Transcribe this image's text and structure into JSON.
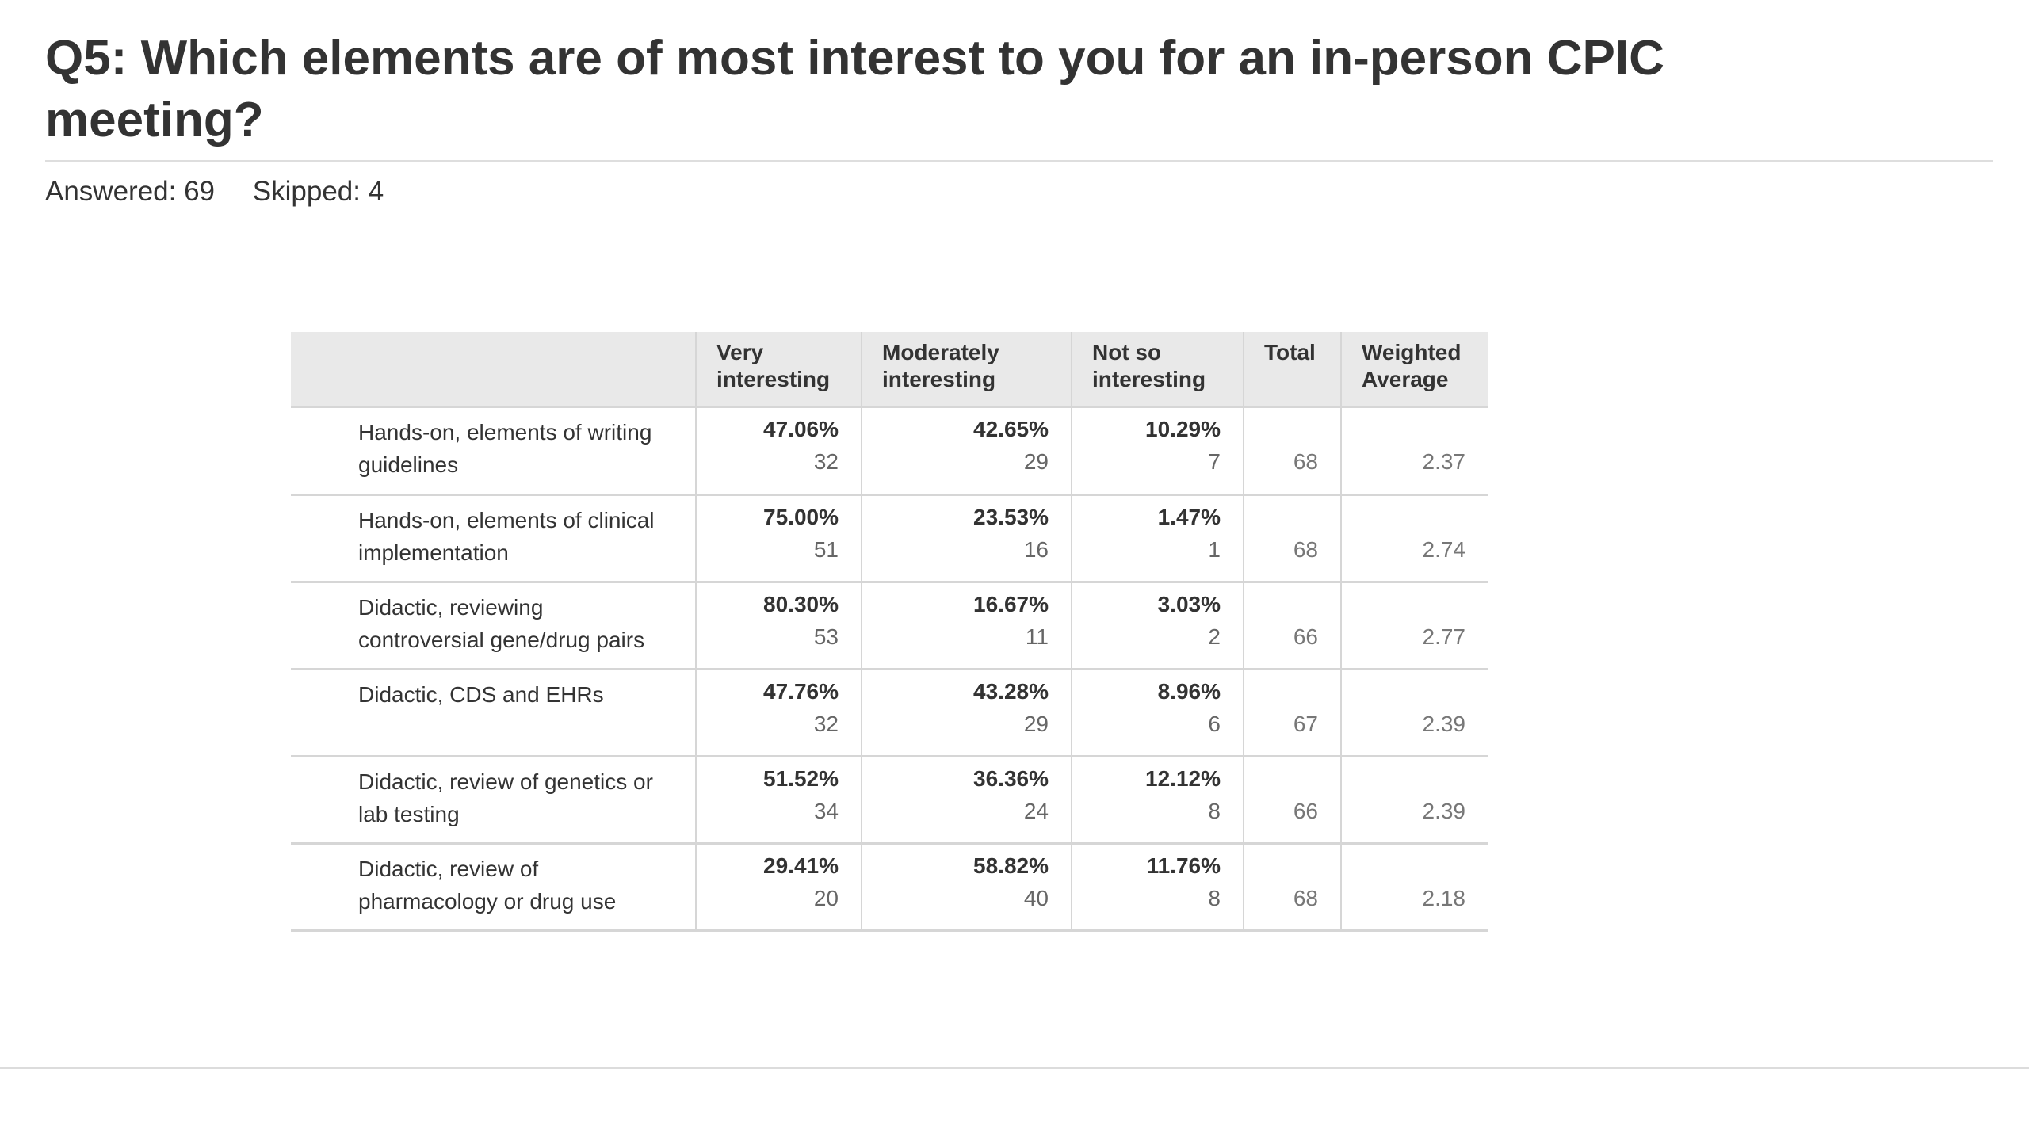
{
  "question": {
    "title": "Q5: Which elements are of most interest to you for an in-person CPIC meeting?",
    "answered": "Answered: 69",
    "skipped": "Skipped: 4"
  },
  "table": {
    "headers": {
      "label": "",
      "very": "Very interesting",
      "moderately": "Moderately interesting",
      "not_so": "Not so interesting",
      "total": "Total",
      "weighted_average": "Weighted Average"
    },
    "rows": [
      {
        "label": "Hands-on, elements of writing guidelines",
        "very_pct": "47.06%",
        "very_count": "32",
        "mod_pct": "42.65%",
        "mod_count": "29",
        "not_pct": "10.29%",
        "not_count": "7",
        "total": "68",
        "weighted_average": "2.37"
      },
      {
        "label": "Hands-on, elements of clinical implementation",
        "very_pct": "75.00%",
        "very_count": "51",
        "mod_pct": "23.53%",
        "mod_count": "16",
        "not_pct": "1.47%",
        "not_count": "1",
        "total": "68",
        "weighted_average": "2.74"
      },
      {
        "label": "Didactic, reviewing controversial gene/drug pairs",
        "very_pct": "80.30%",
        "very_count": "53",
        "mod_pct": "16.67%",
        "mod_count": "11",
        "not_pct": "3.03%",
        "not_count": "2",
        "total": "66",
        "weighted_average": "2.77"
      },
      {
        "label": "Didactic, CDS and EHRs",
        "very_pct": "47.76%",
        "very_count": "32",
        "mod_pct": "43.28%",
        "mod_count": "29",
        "not_pct": "8.96%",
        "not_count": "6",
        "total": "67",
        "weighted_average": "2.39"
      },
      {
        "label": "Didactic, review of genetics or lab testing",
        "very_pct": "51.52%",
        "very_count": "34",
        "mod_pct": "36.36%",
        "mod_count": "24",
        "not_pct": "12.12%",
        "not_count": "8",
        "total": "66",
        "weighted_average": "2.39"
      },
      {
        "label": "Didactic, review of pharmacology or drug use",
        "very_pct": "29.41%",
        "very_count": "20",
        "mod_pct": "58.82%",
        "mod_count": "40",
        "not_pct": "11.76%",
        "not_count": "8",
        "total": "68",
        "weighted_average": "2.18"
      }
    ]
  },
  "colors": {
    "header_background": "#e9e9e9",
    "text": "#333333",
    "muted_text": "#777777",
    "rule": "#d6d6d6"
  }
}
